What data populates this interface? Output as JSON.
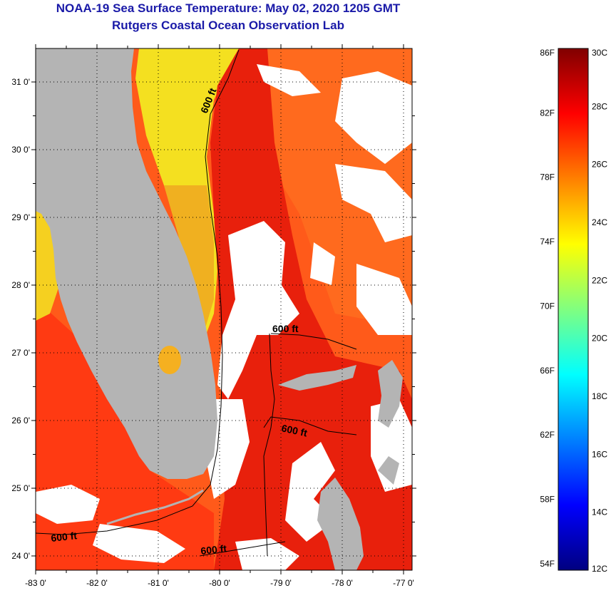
{
  "title": "NOAA-19 Sea Surface Temperature:  May 02, 2020 1205 GMT",
  "subtitle": "Rutgers Coastal Ocean Observation Lab",
  "map": {
    "lat_ticks": [
      "31 0'",
      "30 0'",
      "29 0'",
      "28 0'",
      "27 0'",
      "26 0'",
      "25 0'",
      "24 0'"
    ],
    "lon_ticks": [
      "-83 0'",
      "-82 0'",
      "-81 0'",
      "-80 0'",
      "-79 0'",
      "-78 0'",
      "-77 0'"
    ],
    "lat_values": [
      31,
      30,
      29,
      28,
      27,
      26,
      25,
      24
    ],
    "lon_values": [
      -83,
      -82,
      -81,
      -80,
      -79,
      -78,
      -77
    ],
    "isobath_label": "600 ft",
    "land_color": "#b4b4b4",
    "cloud_color": "#ffffff"
  },
  "colorbar": {
    "f_labels": [
      "86F",
      "82F",
      "78F",
      "74F",
      "70F",
      "66F",
      "62F",
      "58F",
      "54F"
    ],
    "c_labels": [
      "30C",
      "28C",
      "26C",
      "24C",
      "22C",
      "20C",
      "18C",
      "16C",
      "14C",
      "12C"
    ],
    "f_values": [
      86,
      82,
      78,
      74,
      70,
      66,
      62,
      58,
      54
    ],
    "c_values": [
      30,
      28,
      26,
      24,
      22,
      20,
      18,
      16,
      14,
      12
    ],
    "range_c": [
      12,
      30
    ],
    "colors": [
      "#000080",
      "#0000ff",
      "#0080ff",
      "#00ffff",
      "#80ff80",
      "#ffff00",
      "#ff8000",
      "#ff0000",
      "#800000"
    ]
  }
}
